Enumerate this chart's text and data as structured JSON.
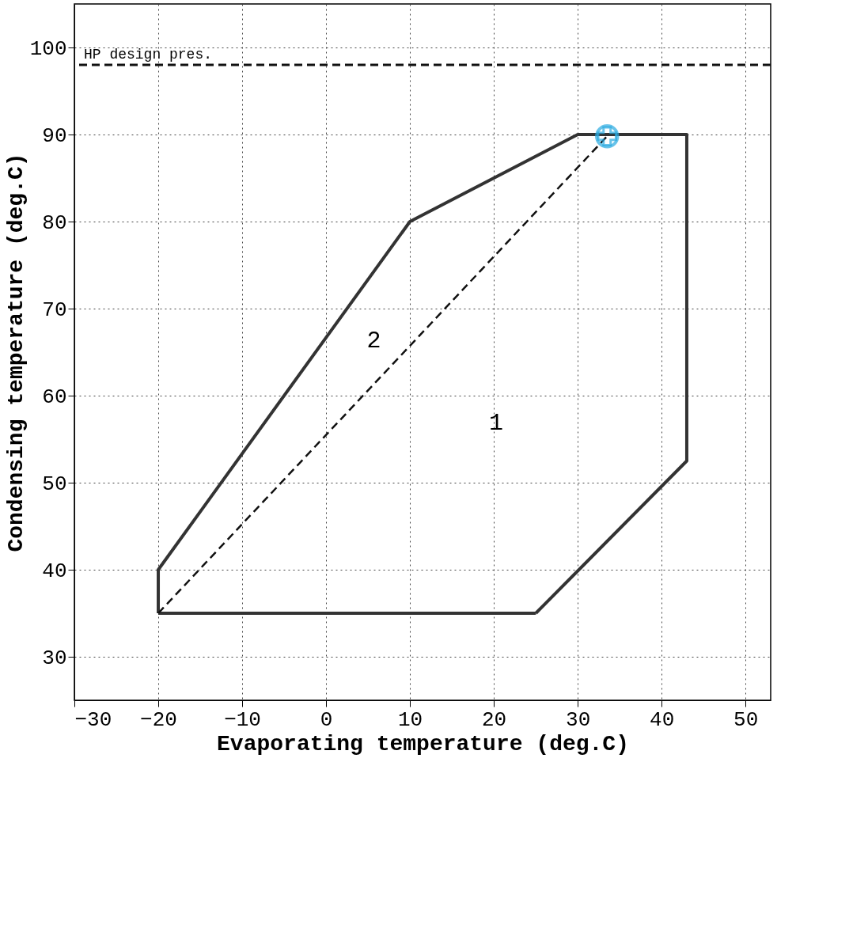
{
  "chart_data": {
    "type": "line",
    "xlabel": "Evaporating temperature (deg.C)",
    "ylabel": "Condensing temperature (deg.C)",
    "xlim": [
      -30,
      53
    ],
    "ylim": [
      25,
      105
    ],
    "xticks": [
      -30,
      -20,
      -10,
      0,
      10,
      20,
      30,
      40,
      50
    ],
    "yticks": [
      30,
      40,
      50,
      60,
      70,
      80,
      90,
      100
    ],
    "grid": true,
    "series": [
      {
        "color": "#333333",
        "line_style": "solid",
        "x": [
          -20,
          -20,
          10,
          30,
          43,
          43,
          25
        ],
        "values": [
          35,
          40,
          80,
          90,
          90,
          52.5,
          35
        ]
      },
      {
        "color": "#333333",
        "line_style": "solid",
        "x": [
          -20,
          25
        ],
        "values": [
          35,
          35
        ]
      },
      {
        "color": "#111111",
        "line_style": "dashed",
        "x": [
          -20,
          33.5
        ],
        "values": [
          35,
          89.8
        ]
      },
      {
        "type": "scatter",
        "color": "#29aae1",
        "marker": "circle",
        "x": [
          33.5
        ],
        "values": [
          89.8
        ]
      }
    ],
    "ref_lines": [
      {
        "axis": "y",
        "value": 98,
        "label": "HP design pres.",
        "line_style": "dashed",
        "color": "#111111"
      }
    ],
    "annotations": [
      "1",
      "2"
    ]
  }
}
